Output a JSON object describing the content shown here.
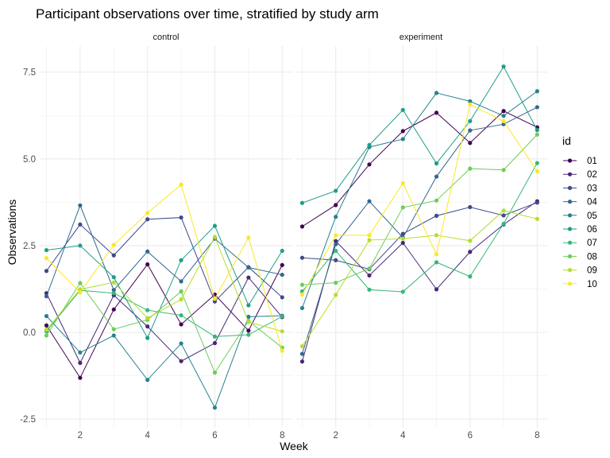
{
  "chart_data": {
    "type": "line",
    "title": "Participant observations over time, stratified by study arm",
    "xlabel": "Week",
    "ylabel": "Observations",
    "x": [
      1,
      2,
      3,
      4,
      5,
      6,
      7,
      8
    ],
    "xticks": [
      "2",
      "4",
      "6",
      "8"
    ],
    "xtick_values": [
      2,
      4,
      6,
      8
    ],
    "yticks": [
      "-2.5",
      "0.0",
      "2.5",
      "5.0",
      "7.5"
    ],
    "ytick_values": [
      -2.5,
      0,
      2.5,
      5,
      7.5
    ],
    "xlim": [
      0.8,
      8.3
    ],
    "ylim": [
      -2.75,
      8.25
    ],
    "grid": true,
    "legend_position": "right",
    "legend_title": "id",
    "palette": [
      "#440154",
      "#482878",
      "#3E4A89",
      "#31688E",
      "#26828E",
      "#1F9E89",
      "#35B779",
      "#6DCD59",
      "#B4DE2C",
      "#FDE725"
    ],
    "facets": [
      {
        "label": "control",
        "series": [
          {
            "name": "01",
            "values": [
              0.2,
              -1.31,
              0.66,
              1.96,
              0.23,
              1.09,
              0.05,
              1.94
            ]
          },
          {
            "name": "02",
            "values": [
              1.13,
              -0.88,
              1.07,
              0.17,
              -0.83,
              -0.31,
              1.58,
              0.44
            ]
          },
          {
            "name": "03",
            "values": [
              1.77,
              3.11,
              2.22,
              3.26,
              3.31,
              0.89,
              1.88,
              1.01
            ]
          },
          {
            "name": "04",
            "values": [
              1.04,
              3.66,
              1.22,
              2.33,
              1.47,
              2.7,
              1.87,
              1.66
            ]
          },
          {
            "name": "05",
            "values": [
              0.47,
              -0.58,
              -0.09,
              -1.37,
              -0.32,
              -2.17,
              0.45,
              0.48
            ]
          },
          {
            "name": "06",
            "values": [
              2.37,
              2.5,
              1.59,
              -0.16,
              2.08,
              3.07,
              0.78,
              2.35
            ]
          },
          {
            "name": "07",
            "values": [
              0.03,
              1.21,
              1.13,
              0.64,
              0.49,
              -0.12,
              -0.07,
              0.46
            ]
          },
          {
            "name": "08",
            "values": [
              -0.09,
              1.42,
              0.09,
              0.36,
              1.18,
              -1.16,
              0.33,
              -0.44
            ]
          },
          {
            "name": "09",
            "values": [
              0.08,
              1.24,
              1.44,
              0.41,
              0.95,
              2.75,
              0.3,
              0.03
            ]
          },
          {
            "name": "10",
            "values": [
              2.14,
              1.15,
              2.52,
              3.44,
              4.26,
              0.97,
              2.73,
              -0.53
            ]
          }
        ]
      },
      {
        "label": "experiment",
        "series": [
          {
            "name": "01",
            "values": [
              3.05,
              3.67,
              4.84,
              5.8,
              6.33,
              5.46,
              6.38,
              5.91
            ]
          },
          {
            "name": "02",
            "values": [
              -0.84,
              2.63,
              1.64,
              2.58,
              1.24,
              2.32,
              3.11,
              3.78
            ]
          },
          {
            "name": "03",
            "values": [
              2.15,
              2.08,
              1.82,
              2.84,
              3.36,
              3.61,
              3.37,
              3.74
            ]
          },
          {
            "name": "04",
            "values": [
              -0.62,
              2.54,
              3.78,
              2.73,
              4.49,
              5.82,
              6.0,
              6.49
            ]
          },
          {
            "name": "05",
            "values": [
              0.7,
              3.33,
              5.34,
              5.57,
              6.9,
              6.66,
              6.24,
              6.95
            ]
          },
          {
            "name": "06",
            "values": [
              3.73,
              4.08,
              5.4,
              6.41,
              4.87,
              6.09,
              7.66,
              5.83
            ]
          },
          {
            "name": "07",
            "values": [
              1.18,
              2.35,
              1.23,
              1.17,
              2.02,
              1.61,
              3.13,
              4.88
            ]
          },
          {
            "name": "08",
            "values": [
              1.37,
              1.43,
              1.84,
              3.6,
              3.8,
              4.72,
              4.68,
              5.7
            ]
          },
          {
            "name": "09",
            "values": [
              -0.4,
              1.08,
              2.66,
              2.7,
              2.8,
              2.64,
              3.51,
              3.27
            ]
          },
          {
            "name": "10",
            "values": [
              1.09,
              2.8,
              2.8,
              4.3,
              2.25,
              6.57,
              6.09,
              4.64
            ]
          }
        ]
      }
    ]
  }
}
